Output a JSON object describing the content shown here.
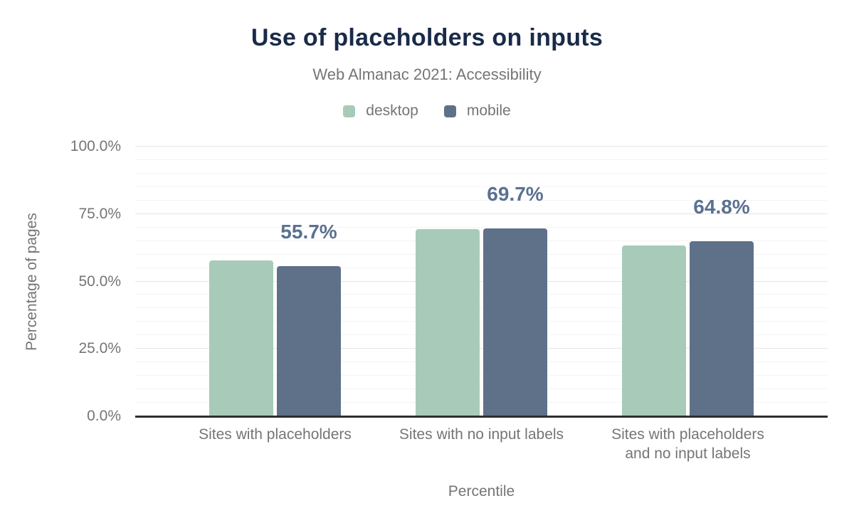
{
  "chart": {
    "title": "Use of placeholders on inputs",
    "subtitle": "Web Almanac 2021: Accessibility",
    "colors": {
      "title_text": "#1a2b49",
      "muted_text": "#757575",
      "data_label_text": "#5b7191",
      "axis_line": "#2e2e2e",
      "gridline_major": "#e6e6e6",
      "gridline_minor": "#f4f4f4",
      "background": "#ffffff",
      "desktop": "#a8cbb9",
      "mobile": "#5f7189"
    },
    "chart_data": {
      "type": "bar",
      "title": "Use of placeholders on inputs",
      "subtitle": "Web Almanac 2021: Accessibility",
      "categories": [
        "Sites with placeholders",
        "Sites with no input labels",
        "Sites with placeholders\nand no input labels"
      ],
      "series": [
        {
          "name": "desktop",
          "color": "#a8cbb9",
          "values": [
            57.8,
            69.3,
            63.3
          ]
        },
        {
          "name": "mobile",
          "color": "#5f7189",
          "values": [
            55.7,
            69.7,
            64.8
          ]
        }
      ],
      "data_labels": [
        "55.7%",
        "69.7%",
        "64.8%"
      ],
      "data_labels_series": "mobile",
      "xlabel": "Percentile",
      "ylabel": "Percentage of pages",
      "ylim": [
        0,
        100
      ],
      "yticks": [
        {
          "value": 0,
          "label": "0.0%"
        },
        {
          "value": 25,
          "label": "25.0%"
        },
        {
          "value": 50,
          "label": "50.0%"
        },
        {
          "value": 75,
          "label": "75.0%"
        },
        {
          "value": 100,
          "label": "100.0%"
        }
      ],
      "minor_gridline_step": 5,
      "grid": true,
      "legend_position": "top"
    }
  }
}
